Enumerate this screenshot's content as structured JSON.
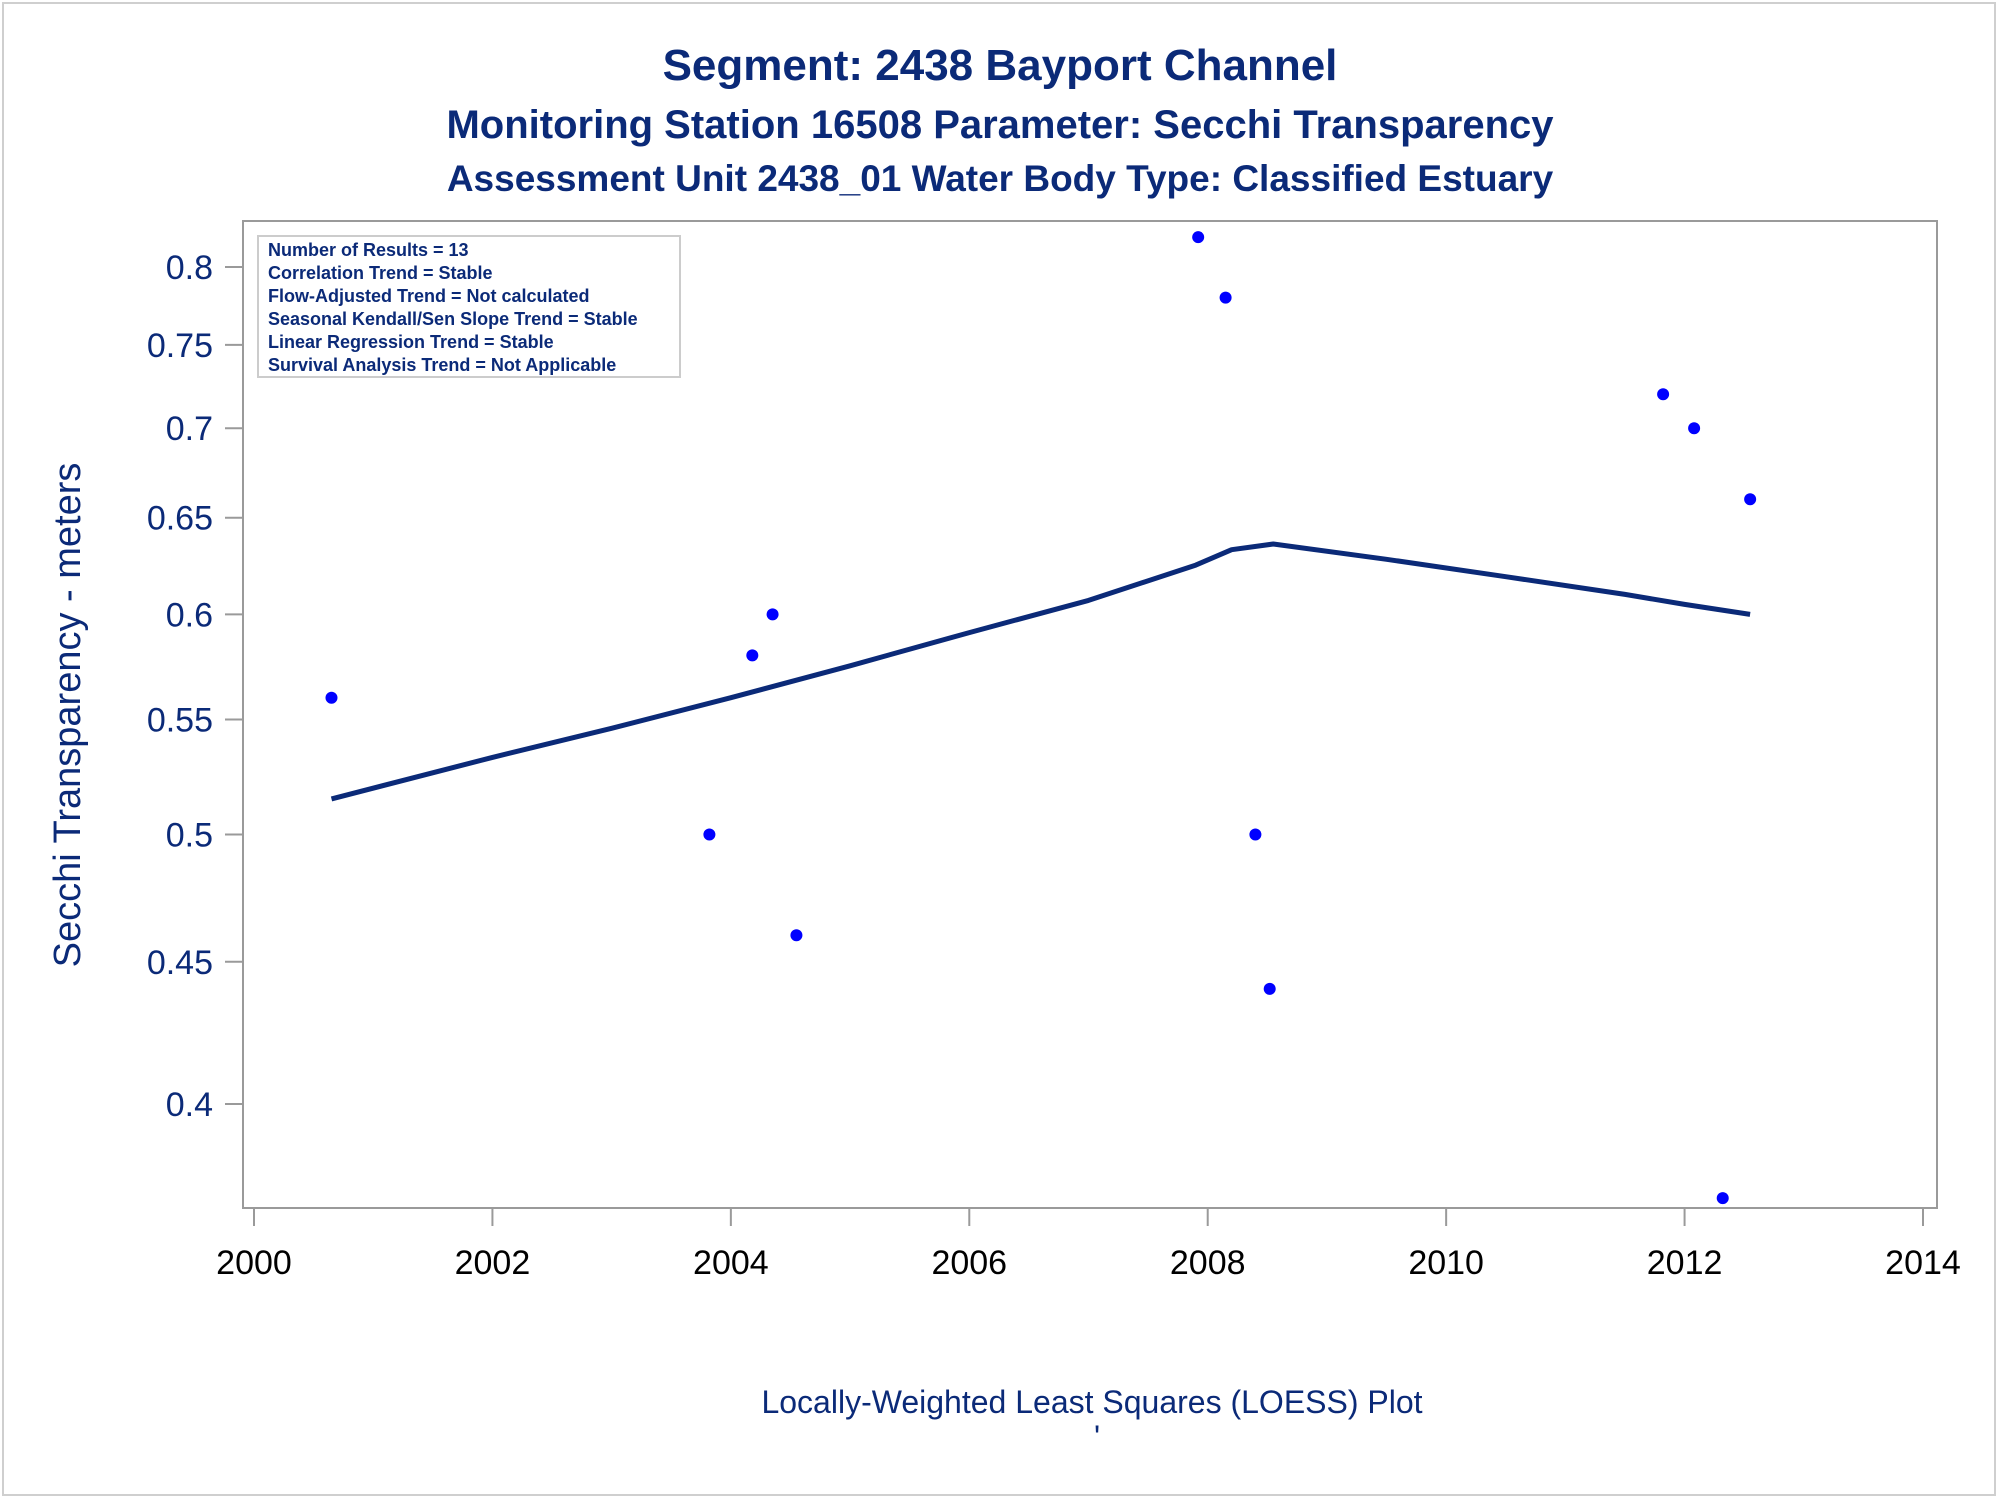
{
  "titles": {
    "line1": "Segment: 2438  Bayport Channel",
    "line2": "Monitoring Station 16508 Parameter: Secchi Transparency",
    "line3": "Assessment Unit 2438_01   Water Body Type: Classified Estuary"
  },
  "stats_box": [
    "Number of Results = 13",
    "Correlation Trend = Stable",
    "Flow-Adjusted Trend = Not calculated",
    "Seasonal Kendall/Sen Slope Trend = Stable",
    "Linear Regression Trend = Stable",
    "Survival Analysis Trend = Not Applicable"
  ],
  "footnote": "Locally-Weighted Least Squares (LOESS) Plot",
  "footnote_mark": "'",
  "colors": {
    "title": "#0b2a78",
    "points": "#0000ff",
    "loess_line": "#0b2a78",
    "frame": "#9a9a9a"
  },
  "chart_data": {
    "type": "scatter",
    "ylabel": "Secchi Transparency - meters",
    "xlabel": "",
    "y_scale": "log",
    "xlim": [
      2000,
      2014
    ],
    "ylim": [
      0.37,
      0.83
    ],
    "x_ticks": [
      2000,
      2002,
      2004,
      2006,
      2008,
      2010,
      2012,
      2014
    ],
    "x_tick_labels": [
      "2000",
      "2002",
      "2004",
      "2006",
      "2008",
      "2010",
      "2012",
      "2014"
    ],
    "y_ticks": [
      0.4,
      0.45,
      0.5,
      0.55,
      0.6,
      0.65,
      0.7,
      0.75,
      0.8
    ],
    "y_tick_labels": [
      "0.4",
      "0.45",
      "0.5",
      "0.55",
      "0.6",
      "0.65",
      "0.7",
      "0.75",
      "0.8"
    ],
    "grid": false,
    "series": [
      {
        "type": "scatter",
        "points": [
          {
            "x": 2000.65,
            "y": 0.56
          },
          {
            "x": 2003.82,
            "y": 0.5
          },
          {
            "x": 2004.18,
            "y": 0.58
          },
          {
            "x": 2004.35,
            "y": 0.6
          },
          {
            "x": 2004.55,
            "y": 0.46
          },
          {
            "x": 2007.92,
            "y": 0.82
          },
          {
            "x": 2008.15,
            "y": 0.78
          },
          {
            "x": 2008.4,
            "y": 0.5
          },
          {
            "x": 2008.52,
            "y": 0.44
          },
          {
            "x": 2011.82,
            "y": 0.72
          },
          {
            "x": 2012.08,
            "y": 0.7
          },
          {
            "x": 2012.32,
            "y": 0.37
          },
          {
            "x": 2012.55,
            "y": 0.66
          }
        ]
      },
      {
        "type": "line",
        "points": [
          {
            "x": 2000.65,
            "y": 0.515
          },
          {
            "x": 2002.0,
            "y": 0.533
          },
          {
            "x": 2003.0,
            "y": 0.546
          },
          {
            "x": 2004.0,
            "y": 0.56
          },
          {
            "x": 2005.0,
            "y": 0.575
          },
          {
            "x": 2006.0,
            "y": 0.591
          },
          {
            "x": 2007.0,
            "y": 0.607
          },
          {
            "x": 2007.9,
            "y": 0.625
          },
          {
            "x": 2008.2,
            "y": 0.633
          },
          {
            "x": 2008.55,
            "y": 0.636
          },
          {
            "x": 2009.5,
            "y": 0.628
          },
          {
            "x": 2010.5,
            "y": 0.619
          },
          {
            "x": 2011.5,
            "y": 0.61
          },
          {
            "x": 2012.0,
            "y": 0.605
          },
          {
            "x": 2012.55,
            "y": 0.6
          }
        ]
      }
    ]
  }
}
